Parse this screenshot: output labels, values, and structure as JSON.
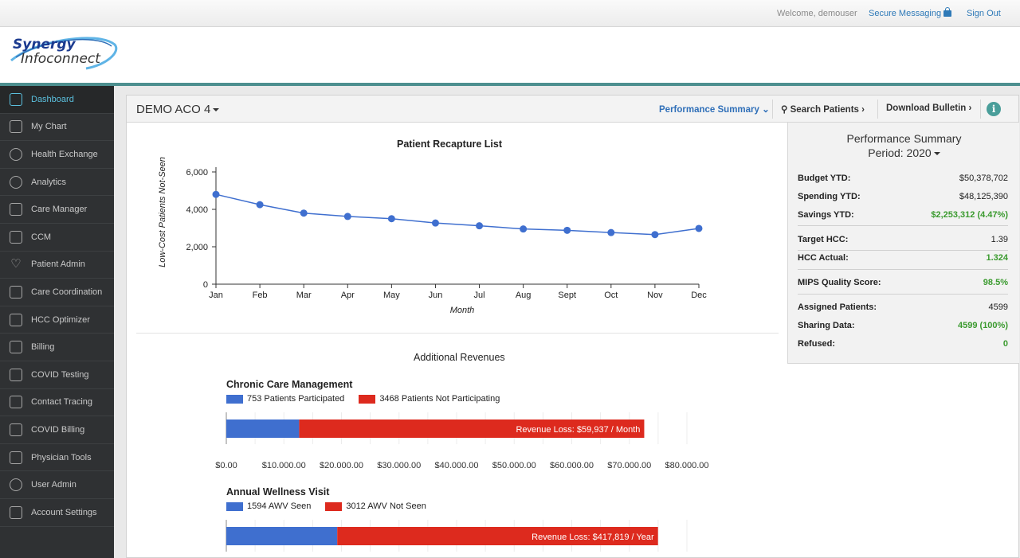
{
  "topbar": {
    "welcome": "Welcome, demouser",
    "secure_messaging": "Secure Messaging",
    "sign_out": "Sign Out"
  },
  "logo": {
    "line1": "Synergy",
    "line2": "Infoconnect"
  },
  "sidebar": {
    "items": [
      {
        "label": "Dashboard",
        "icon": "dashboard-icon",
        "active": true
      },
      {
        "label": "My Chart",
        "icon": "chart-icon"
      },
      {
        "label": "Health Exchange",
        "icon": "plus-circle-icon"
      },
      {
        "label": "Analytics",
        "icon": "magnifier-icon"
      },
      {
        "label": "Care Manager",
        "icon": "person-icon"
      },
      {
        "label": "CCM",
        "icon": "edit-icon"
      },
      {
        "label": "Patient Admin",
        "icon": "heart-icon"
      },
      {
        "label": "Care Coordination",
        "icon": "person-icon"
      },
      {
        "label": "HCC Optimizer",
        "icon": "gauge-icon"
      },
      {
        "label": "Billing",
        "icon": "billing-icon"
      },
      {
        "label": "COVID Testing",
        "icon": "testing-icon"
      },
      {
        "label": "Contact Tracing",
        "icon": "tracing-icon"
      },
      {
        "label": "COVID Billing",
        "icon": "document-icon"
      },
      {
        "label": "Physician Tools",
        "icon": "physician-icon"
      },
      {
        "label": "User Admin",
        "icon": "gear-icon"
      },
      {
        "label": "Account Settings",
        "icon": "lock-icon"
      }
    ]
  },
  "panel": {
    "aco": "DEMO ACO 4",
    "performance_summary": "Performance Summary",
    "search_patients": "Search Patients",
    "download_bulletin": "Download Bulletin"
  },
  "chart_data": [
    {
      "type": "line",
      "title": "Patient Recapture List",
      "xlabel": "Month",
      "ylabel": "Low-Cost Patients Not-Seen",
      "categories": [
        "Jan",
        "Feb",
        "Mar",
        "Apr",
        "May",
        "Jun",
        "Jul",
        "Aug",
        "Sept",
        "Oct",
        "Nov",
        "Dec"
      ],
      "values": [
        4800,
        4250,
        3800,
        3620,
        3500,
        3270,
        3120,
        2950,
        2880,
        2760,
        2650,
        2980
      ],
      "yticks": [
        "6,000",
        "4,000",
        "2,000",
        "0"
      ],
      "ylim": [
        0,
        6000
      ],
      "color": "#3f6fcf"
    },
    {
      "type": "bar",
      "title": "Chronic Care Management",
      "orientation": "horizontal-stacked",
      "series": [
        {
          "name": "753 Patients Participated",
          "value": 12650,
          "color": "#3f6fcf"
        },
        {
          "name": "3468 Patients Not Participating",
          "value": 59937,
          "color": "#dd2a1e",
          "label": "Revenue Loss: $59,937 / Month"
        }
      ],
      "xticks": [
        "$0.00",
        "$10,000.00",
        "$20,000.00",
        "$30,000.00",
        "$40,000.00",
        "$50,000.00",
        "$60,000.00",
        "$70,000.00",
        "$80,000.00"
      ],
      "xlim": [
        0,
        80000
      ]
    },
    {
      "type": "bar",
      "title": "Annual Wellness Visit",
      "orientation": "horizontal-stacked",
      "series": [
        {
          "name": "1594 AWV Seen",
          "value": 144500,
          "color": "#3f6fcf"
        },
        {
          "name": "3012 AWV Not Seen",
          "value": 417819,
          "color": "#dd2a1e",
          "label": "Revenue Loss: $417,819 / Year"
        }
      ],
      "xlim": [
        0,
        600000
      ]
    }
  ],
  "revenues": {
    "title": "Additional Revenues"
  },
  "summary": {
    "title": "Performance Summary",
    "period": "Period: 2020",
    "rows": [
      {
        "k": "Budget YTD:",
        "v": "$50,378,702"
      },
      {
        "k": "Spending YTD:",
        "v": "$48,125,390"
      },
      {
        "k": "Savings YTD:",
        "v": "$2,253,312 (4.47%)",
        "green": true
      },
      {
        "k": "Target HCC:",
        "v": "1.39"
      },
      {
        "k": "HCC Actual:",
        "v": "1.324",
        "green": true
      },
      {
        "k": "MIPS Quality Score:",
        "v": "98.5%",
        "green": true
      },
      {
        "k": "Assigned Patients:",
        "v": "4599"
      },
      {
        "k": "Sharing Data:",
        "v": "4599 (100%)",
        "green": true
      },
      {
        "k": "Refused:",
        "v": "0",
        "green": true
      }
    ]
  }
}
